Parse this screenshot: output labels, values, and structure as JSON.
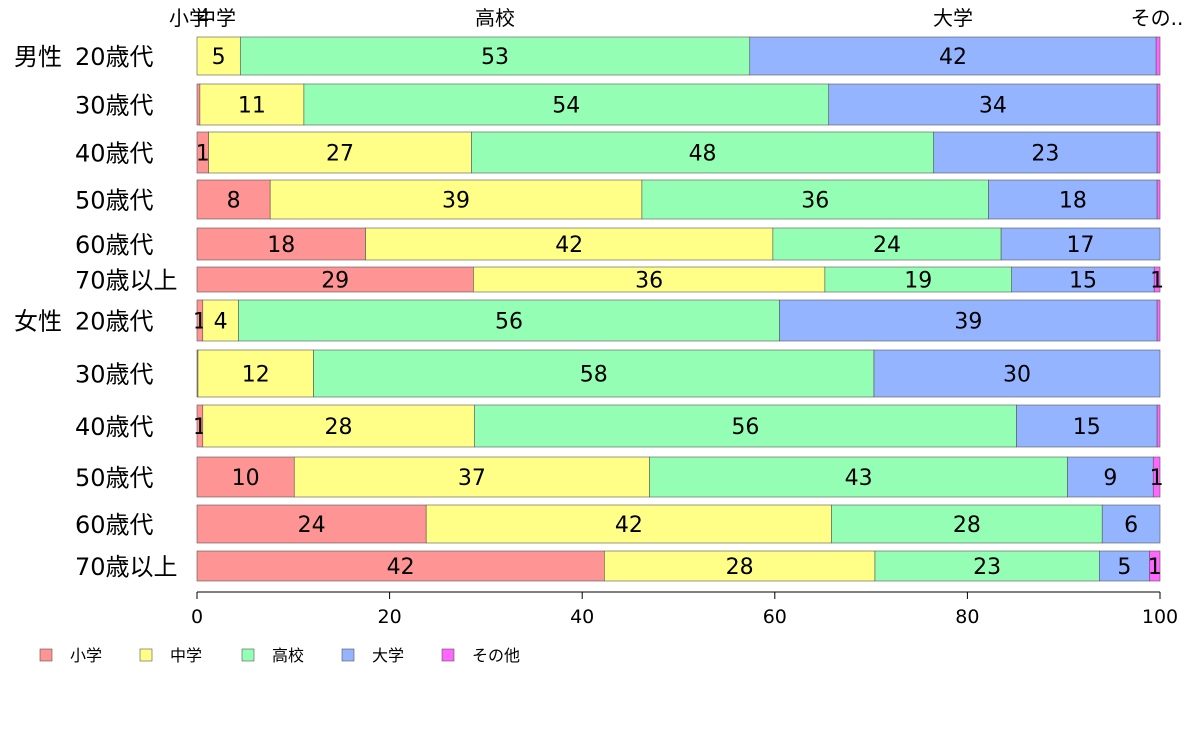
{
  "chart_data": {
    "type": "bar",
    "orientation": "horizontal",
    "stacked": true,
    "xlim": [
      0,
      100
    ],
    "x_ticks": [
      0,
      20,
      40,
      60,
      80,
      100
    ],
    "grid": false,
    "legend_position": "bottom-left",
    "top_labels": [
      "小学",
      "中学",
      "高校",
      "大学",
      "その.."
    ],
    "groups": [
      {
        "label": "男性",
        "start_index": 0
      },
      {
        "label": "女性",
        "start_index": 6
      }
    ],
    "categories": [
      "20歳代",
      "30歳代",
      "40歳代",
      "50歳代",
      "60歳代",
      "70歳以上",
      "20歳代",
      "30歳代",
      "40歳代",
      "50歳代",
      "60歳代",
      "70歳以上"
    ],
    "series": [
      {
        "name": "小学",
        "color": "#ff9494",
        "values": [
          0,
          0.3,
          1.2,
          7.6,
          17.5,
          28.7,
          0.6,
          0.1,
          0.6,
          10.1,
          23.8,
          42.3
        ]
      },
      {
        "name": "中学",
        "color": "#ffff88",
        "values": [
          4.5,
          10.8,
          27.3,
          38.6,
          42.3,
          36.5,
          3.7,
          12.0,
          28.2,
          36.9,
          42.1,
          28.1
        ]
      },
      {
        "name": "高校",
        "color": "#94ffb4",
        "values": [
          52.9,
          54.5,
          48.0,
          36.0,
          23.7,
          19.4,
          56.2,
          58.2,
          56.3,
          43.4,
          28.1,
          23.3
        ]
      },
      {
        "name": "大学",
        "color": "#94b4ff",
        "values": [
          42.2,
          34.1,
          23.2,
          17.5,
          16.5,
          14.8,
          39.2,
          29.7,
          14.6,
          8.9,
          6.0,
          5.2
        ]
      },
      {
        "name": "その他",
        "color": "#ff66ff",
        "values": [
          0.4,
          0.3,
          0.3,
          0.3,
          0,
          0.6,
          0.3,
          0,
          0.3,
          0.7,
          0,
          1.1
        ]
      }
    ],
    "data_labels": [
      [
        "",
        "5",
        "53",
        "42",
        ""
      ],
      [
        "",
        "11",
        "54",
        "34",
        ""
      ],
      [
        "1",
        "27",
        "48",
        "23",
        ""
      ],
      [
        "8",
        "39",
        "36",
        "18",
        ""
      ],
      [
        "18",
        "42",
        "24",
        "17",
        ""
      ],
      [
        "29",
        "36",
        "19",
        "15",
        "1"
      ],
      [
        "1",
        "4",
        "56",
        "39",
        ""
      ],
      [
        "",
        "12",
        "58",
        "30",
        ""
      ],
      [
        "1",
        "28",
        "56",
        "15",
        ""
      ],
      [
        "10",
        "37",
        "43",
        "9",
        "1"
      ],
      [
        "24",
        "42",
        "28",
        "6",
        ""
      ],
      [
        "42",
        "28",
        "23",
        "5",
        "1"
      ]
    ]
  }
}
